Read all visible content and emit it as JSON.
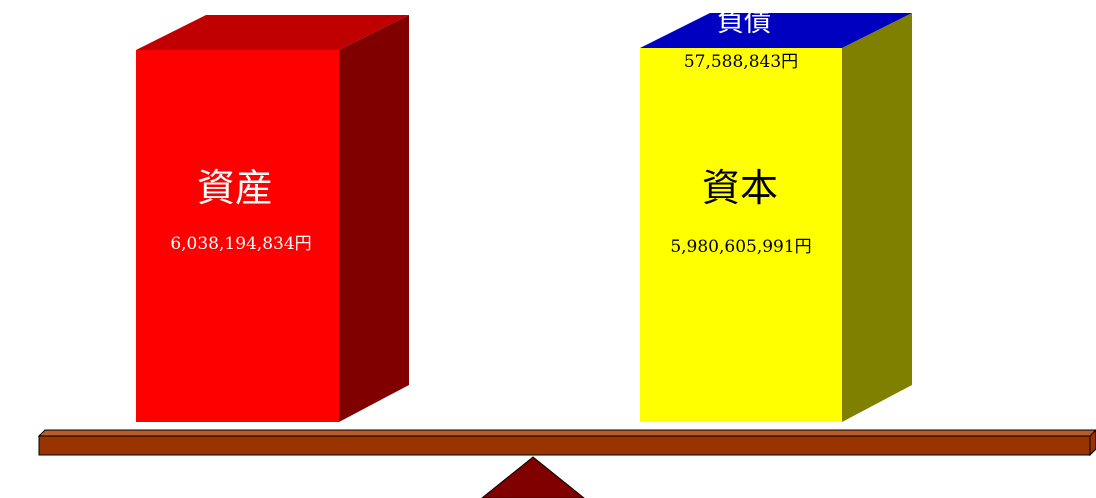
{
  "assets": {
    "label": "資産",
    "amount": "6,038,194,834円",
    "value": 6038194834,
    "colors": {
      "front": "#ff0000",
      "top": "#c00000",
      "side": "#800000",
      "text": "#ffffff"
    }
  },
  "liabilities": {
    "label": "負債",
    "amount": "57,588,843円",
    "value": 57588843,
    "colors": {
      "top": "#0000c0",
      "text": "#ffffff",
      "amount_text": "#000000"
    }
  },
  "equity": {
    "label": "資本",
    "amount": "5,980,605,991円",
    "value": 5980605991,
    "colors": {
      "front": "#ffff00",
      "side": "#808000",
      "text": "#000000"
    }
  },
  "balance": {
    "colors": {
      "beam": "#993300",
      "beam_top": "#b85c2e",
      "fulcrum": "#800000"
    }
  }
}
